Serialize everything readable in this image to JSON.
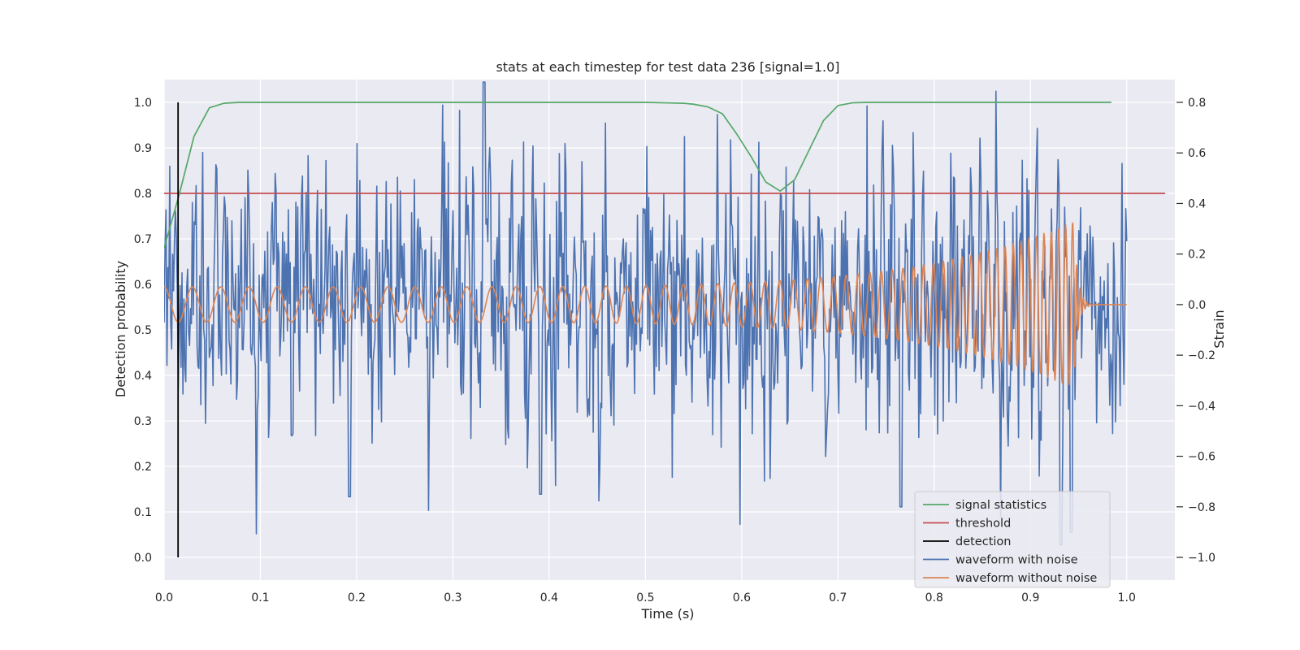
{
  "chart_data": {
    "type": "line",
    "title": "stats at each timestep for test data 236 [signal=1.0]",
    "xlabel": "Time (s)",
    "ylabel_left": "Detection probability",
    "ylabel_right": "Strain",
    "xlim": [
      0.0,
      1.05
    ],
    "ylim_left": [
      -0.05,
      1.05
    ],
    "ylim_right": [
      -1.09,
      0.89
    ],
    "x_ticks": [
      0.0,
      0.1,
      0.2,
      0.3,
      0.4,
      0.5,
      0.6,
      0.7,
      0.8,
      0.9,
      1.0
    ],
    "x_tick_labels": [
      "0.0",
      "0.1",
      "0.2",
      "0.3",
      "0.4",
      "0.5",
      "0.6",
      "0.7",
      "0.8",
      "0.9",
      "1.0"
    ],
    "y_left_ticks": [
      0.0,
      0.1,
      0.2,
      0.3,
      0.4,
      0.5,
      0.6,
      0.7,
      0.8,
      0.9,
      1.0
    ],
    "y_left_tick_labels": [
      "0.0",
      "0.1",
      "0.2",
      "0.3",
      "0.4",
      "0.5",
      "0.6",
      "0.7",
      "0.8",
      "0.9",
      "1.0"
    ],
    "y_right_ticks": [
      0.8,
      0.6,
      0.4,
      0.2,
      0.0,
      -0.2,
      -0.4,
      -0.6,
      -0.8,
      -1.0
    ],
    "y_right_tick_labels": [
      "0.8",
      "0.6",
      "0.4",
      "0.2",
      "0.0",
      "−0.2",
      "−0.4",
      "−0.6",
      "−0.8",
      "−1.0"
    ],
    "grid": true,
    "legend_position": "lower-right",
    "background_color": "#eaeaf2",
    "series": [
      {
        "name": "signal statistics",
        "axis": "left",
        "color": "#55a868",
        "x": [
          0.0,
          0.016,
          0.031,
          0.047,
          0.062,
          0.078,
          0.1,
          0.2,
          0.3,
          0.4,
          0.45,
          0.5,
          0.52,
          0.54,
          0.55,
          0.565,
          0.58,
          0.595,
          0.61,
          0.625,
          0.64,
          0.655,
          0.67,
          0.685,
          0.7,
          0.715,
          0.73,
          0.8,
          0.9,
          0.984
        ],
        "y": [
          0.68,
          0.8,
          0.925,
          0.988,
          0.998,
          1.0,
          1.0,
          1.0,
          1.0,
          1.0,
          1.0,
          1.0,
          0.999,
          0.998,
          0.996,
          0.99,
          0.975,
          0.93,
          0.88,
          0.825,
          0.805,
          0.83,
          0.895,
          0.96,
          0.993,
          0.999,
          1.0,
          1.0,
          1.0,
          1.0
        ]
      },
      {
        "name": "threshold",
        "axis": "left",
        "color": "#c44e52",
        "x": [
          0.0,
          1.04
        ],
        "y": [
          0.8,
          0.8
        ]
      },
      {
        "name": "detection",
        "axis": "left",
        "color": "#000000",
        "x": [
          0.0145,
          0.0145
        ],
        "y": [
          0.0,
          1.0
        ]
      },
      {
        "name": "waveform with noise",
        "axis": "right",
        "color": "#4c72b0",
        "x_start": 0.0,
        "x_end": 1.0,
        "y": [
          0.7,
          0.12,
          0.35,
          -0.28,
          0.07,
          -0.45,
          0.22,
          -0.08,
          0.3,
          -0.12,
          0.05,
          0.4,
          -0.3,
          0.18,
          -0.15,
          0.36,
          -0.22,
          0.1,
          0.55,
          -0.05,
          -0.35,
          0.2,
          0.02,
          -0.18,
          0.48,
          0.1,
          -0.4,
          0.25,
          -0.28,
          0.62,
          0.1,
          -0.15,
          0.3,
          -0.5,
          0.4,
          -0.05,
          0.22,
          -0.32,
          0.08,
          -0.1,
          0.42,
          -0.25,
          0.15,
          0.05,
          -0.38,
          0.58,
          -0.12,
          0.28,
          -0.35,
          0.1,
          0.2,
          -0.46,
          0.35,
          0.02,
          -0.2,
          0.52,
          -0.4,
          0.18,
          -0.08,
          0.3,
          -0.3,
          0.12,
          0.6,
          -0.22,
          0.05,
          0.24,
          -0.4,
          0.38,
          -0.12,
          0.15,
          -0.3,
          0.2,
          0.48,
          -0.55,
          0.08,
          0.3,
          -0.15,
          0.42,
          -0.28,
          0.1,
          0.35,
          -0.42,
          0.22,
          -0.08,
          0.5,
          -0.2,
          0.12,
          -0.36,
          0.28,
          0.05,
          -0.25,
          0.45,
          -0.1,
          0.18,
          -0.32,
          0.3,
          0.08,
          -0.48,
          0.6,
          -0.18,
          0.25,
          -0.05,
          0.4,
          -0.3,
          0.15,
          0.02,
          -0.22,
          0.36,
          -0.4,
          0.2,
          0.1,
          -0.15,
          0.3,
          -0.35,
          0.48,
          -0.1,
          0.22,
          -0.28,
          0.12,
          0.05,
          -0.18,
          0.4,
          -0.25,
          0.3,
          -0.42,
          0.15,
          0.55,
          -0.2,
          0.08,
          -0.3,
          0.25,
          -0.12,
          0.38,
          -0.5,
          0.18,
          0.02,
          -0.35,
          0.28,
          0.1,
          -0.22,
          0.45,
          -0.15,
          0.3,
          -0.38,
          0.2,
          -0.05,
          0.35,
          -0.28,
          0.12,
          0.42,
          -0.45,
          0.22,
          -0.1,
          0.3,
          -0.2,
          0.15,
          0.5,
          -0.32,
          0.08,
          -0.18,
          0.28,
          -0.4,
          0.38,
          0.05,
          -0.25,
          0.2,
          -0.12,
          0.46,
          -0.36,
          0.1,
          0.25,
          -0.3,
          0.18,
          -0.08,
          0.4,
          -0.22,
          0.3,
          -0.48,
          0.12,
          0.35,
          -0.15,
          0.05,
          -0.3,
          0.55,
          -0.2,
          0.2,
          -0.1,
          0.32,
          -0.4,
          0.15,
          0.42,
          -0.28,
          0.1,
          -0.18,
          0.28,
          -0.35,
          0.22,
          0.05,
          -0.25,
          0.5,
          -0.12,
          0.3,
          -0.42,
          0.18,
          -0.05,
          0.38,
          -0.3,
          0.12,
          0.25,
          -0.2,
          0.45,
          -0.38,
          0.08,
          -0.15,
          0.3
        ],
        "y_points_by_time": [
          [
            0.0,
            0.7
          ],
          [
            0.001,
            0.35
          ],
          [
            0.003,
            -0.1
          ],
          [
            0.005,
            0.2
          ],
          [
            0.008,
            0.12
          ],
          [
            0.011,
            -0.5
          ],
          [
            0.014,
            0.05
          ],
          [
            0.018,
            0.2
          ],
          [
            0.02,
            -0.15
          ]
        ]
      },
      {
        "name": "waveform without noise",
        "axis": "right",
        "color": "#dd8452",
        "x_start": 0.0,
        "x_end": 1.0,
        "amplitude_start": 0.07,
        "amplitude_peak": 0.33,
        "frequency_start_hz": 34,
        "frequency_end_hz": 140,
        "merger_time": 0.945
      }
    ],
    "legend": [
      "signal statistics",
      "threshold",
      "detection",
      "waveform with noise",
      "waveform without noise"
    ]
  }
}
